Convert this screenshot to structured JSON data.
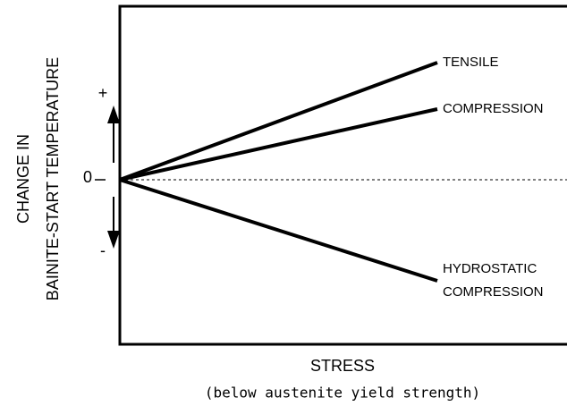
{
  "chart_data": {
    "type": "line",
    "ylabel": [
      "CHANGE IN",
      "BAINITE-START TEMPERATURE"
    ],
    "xlabel": "STRESS",
    "subtitle": "(below austenite yield strength)",
    "annotations": [
      "+",
      "-"
    ],
    "xlim": [
      0,
      100
    ],
    "ylim": [
      -184,
      194
    ],
    "yticks": [
      0
    ],
    "grid": true,
    "series": [
      {
        "name": "TENSILE",
        "color": "#000000",
        "x": [
          0,
          71
        ],
        "values": [
          0,
          131
        ]
      },
      {
        "name": "COMPRESSION",
        "color": "#000000",
        "x": [
          0,
          71
        ],
        "values": [
          0,
          79
        ]
      },
      {
        "name": "HYDROSTATIC COMPRESSION",
        "color": "#000000",
        "x": [
          0,
          71
        ],
        "values": [
          0,
          -113
        ]
      }
    ]
  }
}
